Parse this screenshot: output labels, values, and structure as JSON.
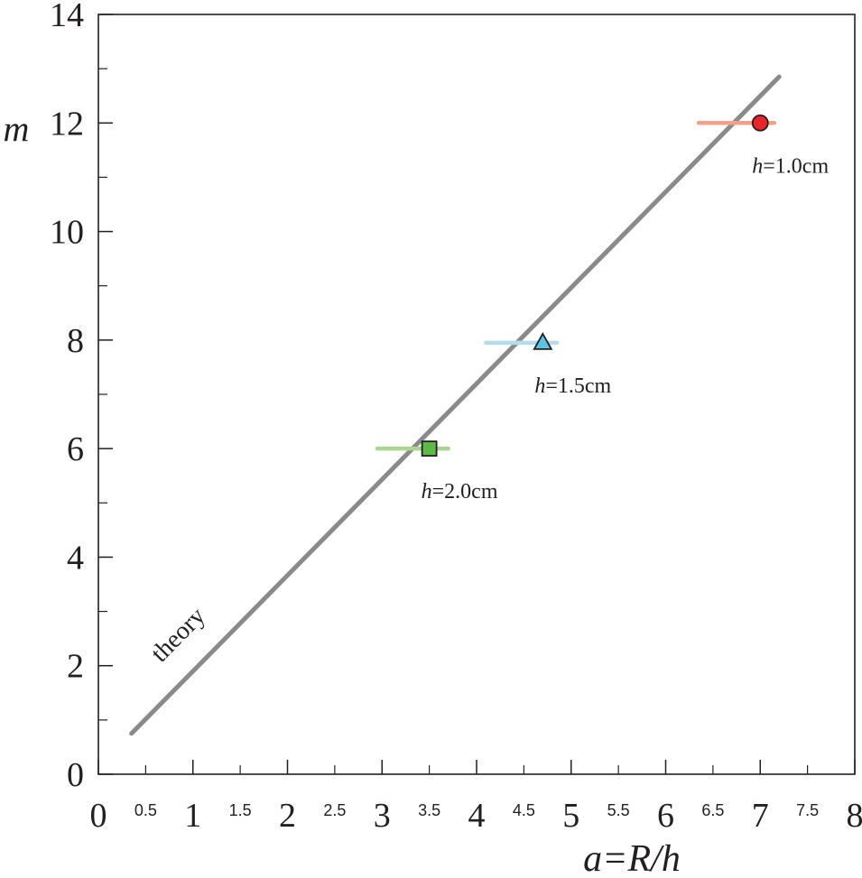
{
  "chart_data": {
    "type": "scatter",
    "title": "",
    "xlabel": "a=R/h",
    "ylabel": "m",
    "xlim": [
      0,
      8
    ],
    "ylim": [
      0,
      14
    ],
    "x_major_ticks": [
      "0",
      "1",
      "2",
      "3",
      "4",
      "5",
      "6",
      "7",
      "8"
    ],
    "x_minor_ticks": [
      "0.5",
      "1.5",
      "2.5",
      "3.5",
      "4.5",
      "5.5",
      "6.5",
      "7.5"
    ],
    "y_major_ticks": [
      "0",
      "2",
      "4",
      "6",
      "8",
      "10",
      "12",
      "14"
    ],
    "theory_line": {
      "label": "theory",
      "color": "#8a8a8a",
      "points": [
        [
          0.35,
          0.75
        ],
        [
          7.2,
          12.85
        ]
      ]
    },
    "series": [
      {
        "label": "h=1.0cm",
        "label_italic": "h",
        "label_rest": "=1.0cm",
        "marker": "circle",
        "color": "#e8262a",
        "error_color": "#f2a088",
        "x": 7.0,
        "y": 12.0,
        "x_err": [
          6.35,
          7.15
        ]
      },
      {
        "label": "h=1.5cm",
        "label_italic": "h",
        "label_rest": "=1.5cm",
        "marker": "triangle",
        "color": "#5bc3e6",
        "error_color": "#b5dde8",
        "x": 4.7,
        "y": 7.95,
        "x_err": [
          4.1,
          4.85
        ]
      },
      {
        "label": "h=2.0cm",
        "label_italic": "h",
        "label_rest": "=2.0cm",
        "marker": "square",
        "color": "#5cba47",
        "error_color": "#a9d690",
        "x": 3.5,
        "y": 6.0,
        "x_err": [
          2.95,
          3.7
        ]
      }
    ]
  }
}
